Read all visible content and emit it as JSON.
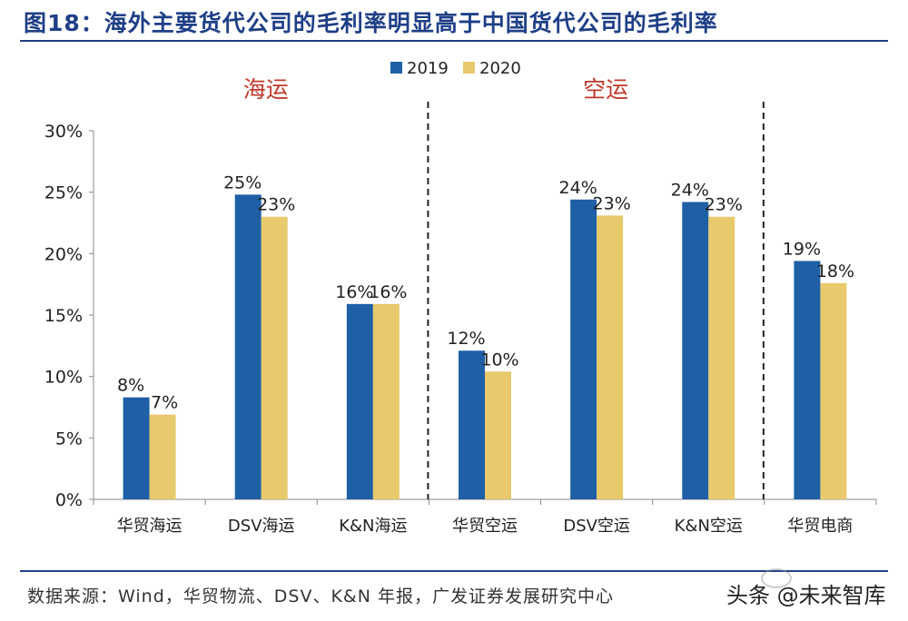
{
  "figure": {
    "title": "图18：海外主要货代公司的毛利率明显高于中国货代公司的毛利率",
    "source": "数据来源：Wind，华贸物流、DSV、K&N 年报，广发证券发展研究中心",
    "watermark": "头条 @未来智库"
  },
  "chart_data": {
    "type": "bar",
    "categories": [
      "华贸海运",
      "DSV海运",
      "K&N海运",
      "华贸空运",
      "DSV空运",
      "K&N空运",
      "华贸电商"
    ],
    "series": [
      {
        "name": "2019",
        "values": [
          8.3,
          24.8,
          15.9,
          12.1,
          24.4,
          24.2,
          19.4
        ],
        "labels": [
          "8%",
          "25%",
          "16%",
          "12%",
          "24%",
          "24%",
          "19%"
        ]
      },
      {
        "name": "2020",
        "values": [
          6.9,
          23.0,
          15.9,
          10.4,
          23.1,
          23.0,
          17.6
        ],
        "labels": [
          "7%",
          "23%",
          "16%",
          "10%",
          "23%",
          "23%",
          "18%"
        ]
      }
    ],
    "ylim": [
      0,
      30
    ],
    "yticks": [
      "0%",
      "5%",
      "10%",
      "15%",
      "20%",
      "25%",
      "30%"
    ],
    "groups": [
      "海运",
      "空运"
    ],
    "legend_position": "top-center",
    "colors": {
      "2019": "#1f5fa6",
      "2020": "#e8c96c",
      "group_label": "#c0392b",
      "title": "#1f3f86"
    }
  }
}
